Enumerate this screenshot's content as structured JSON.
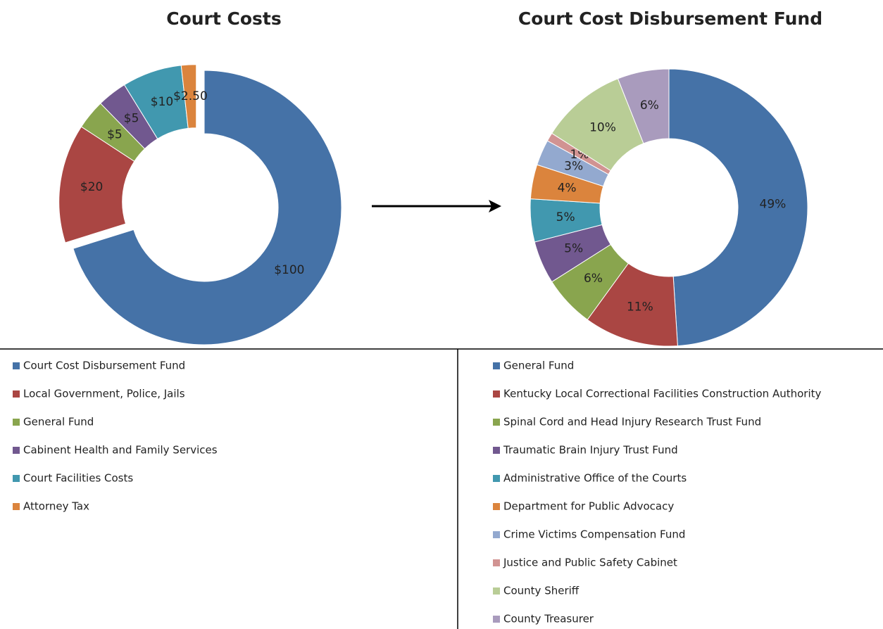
{
  "chart_data": [
    {
      "type": "donut",
      "title": "Court Costs",
      "categories": [
        "Court Cost Disbursement Fund",
        "Local Government, Police, Jails",
        "General Fund",
        "Cabinent Health and Family Services",
        "Court Facilities Costs",
        "Attorney Tax"
      ],
      "values": [
        100,
        20,
        5,
        5,
        10,
        2.5
      ],
      "value_labels": [
        "$100",
        "$20",
        "$5",
        "$5",
        "$10",
        "$2.50"
      ],
      "colors": [
        "#4572a7",
        "#aa4643",
        "#89a54e",
        "#71588f",
        "#4198af",
        "#db843d"
      ]
    },
    {
      "type": "donut",
      "title": "Court Cost Disbursement Fund",
      "categories": [
        "General Fund",
        "Kentucky Local Correctional Facilities Construction Authority",
        "Spinal Cord and Head Injury Research Trust Fund",
        "Traumatic Brain Injury Trust Fund",
        "Administrative Office of the Courts",
        "Department for Public Advocacy",
        "Crime Victims Compensation Fund",
        "Justice and Public Safety Cabinet",
        "County Sheriff",
        "County Treasurer"
      ],
      "values": [
        49,
        11,
        6,
        5,
        5,
        4,
        3,
        1,
        10,
        6
      ],
      "value_labels": [
        "49%",
        "11%",
        "6%",
        "5%",
        "5%",
        "4%",
        "3%",
        "1%",
        "10%",
        "6%"
      ],
      "colors": [
        "#4572a7",
        "#aa4643",
        "#89a54e",
        "#71588f",
        "#4198af",
        "#db843d",
        "#93a9cf",
        "#d19392",
        "#b9cd96",
        "#a99bbd"
      ]
    }
  ]
}
